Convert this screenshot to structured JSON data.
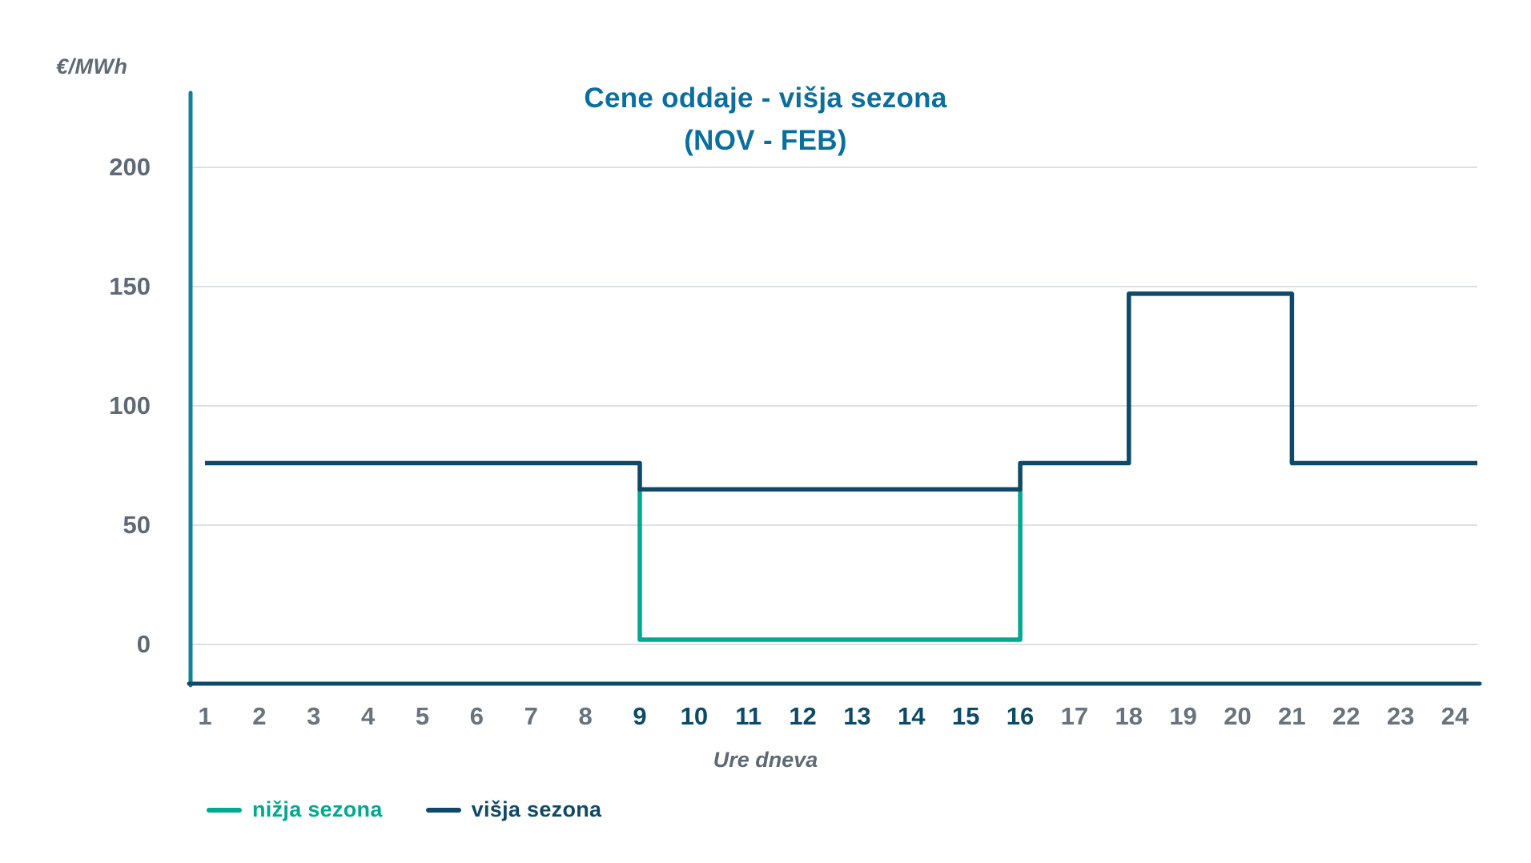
{
  "page": {
    "background": "#ffffff"
  },
  "title": {
    "line1": "Cene oddaje - višja sezona",
    "line2": "(NOV - FEB)",
    "color": "#0b6f9e"
  },
  "y_axis": {
    "unit_label": "€/MWh"
  },
  "x_axis": {
    "label": "Ure dneva"
  },
  "legend": [
    {
      "label": "nižja sezona",
      "color": "#00a98f"
    },
    {
      "label": "višja sezona",
      "color": "#0e4a68"
    }
  ],
  "chart_data": {
    "type": "line",
    "line_style": "step",
    "title": "Cene oddaje - višja sezona (NOV - FEB)",
    "xlabel": "Ure dneva",
    "ylabel": "€/MWh",
    "x_range": [
      1,
      24
    ],
    "y_ticks": [
      0,
      50,
      100,
      150,
      200
    ],
    "x_ticks": [
      1,
      2,
      3,
      4,
      5,
      6,
      7,
      8,
      9,
      10,
      11,
      12,
      13,
      14,
      15,
      16,
      17,
      18,
      19,
      20,
      21,
      22,
      23,
      24
    ],
    "highlighted_x_ticks": [
      9,
      10,
      11,
      12,
      13,
      14,
      15,
      16
    ],
    "grid": "horizontal",
    "grid_color": "#d0d5da",
    "legend_position": "bottom-left",
    "axis_colors": {
      "y_axis": "#0f819f",
      "x_axis": "#0e4a68"
    },
    "series": [
      {
        "name": "nižja sezona",
        "color": "#00a98f",
        "points": [
          [
            9,
            65
          ],
          [
            9,
            2
          ],
          [
            16,
            2
          ],
          [
            16,
            65
          ]
        ]
      },
      {
        "name": "višja sezona",
        "color": "#0e4a68",
        "extends_to_plot_edge": true,
        "points": [
          [
            1,
            76
          ],
          [
            9,
            76
          ],
          [
            9,
            65
          ],
          [
            16,
            65
          ],
          [
            16,
            76
          ],
          [
            18,
            76
          ],
          [
            18,
            147
          ],
          [
            21,
            147
          ],
          [
            21,
            76
          ],
          [
            24,
            76
          ]
        ]
      }
    ]
  }
}
